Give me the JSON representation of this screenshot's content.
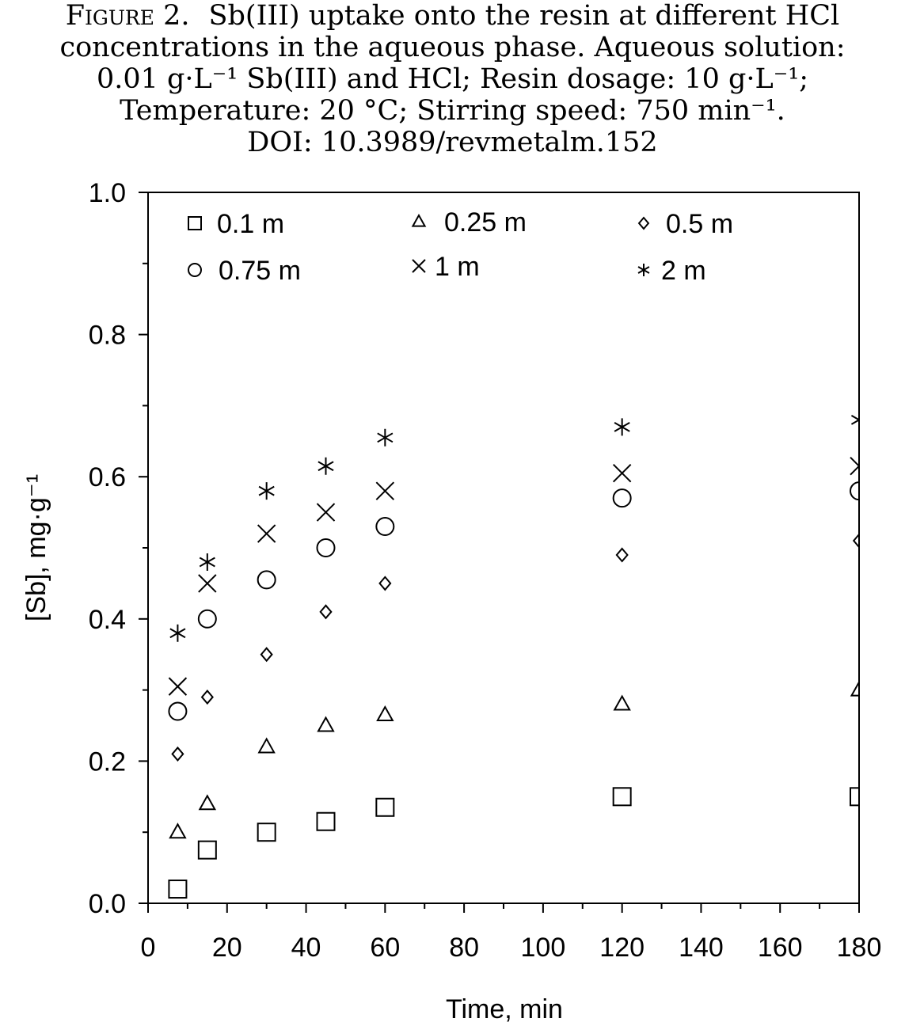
{
  "caption": {
    "label": "Figure 2.",
    "line1": "Sb(III) uptake onto the resin at different HCl",
    "line2": "concentrations in the aqueous phase. Aqueous solution:",
    "line3": "0.01 g·L⁻¹ Sb(III) and HCl; Resin dosage: 10 g·L⁻¹;",
    "line4": "Temperature: 20 °C; Stirring speed: 750 min⁻¹.",
    "line5": "DOI: 10.3989/revmetalm.152"
  },
  "chart_data": {
    "type": "scatter",
    "xlabel": "Time, min",
    "ylabel": "[Sb], mg·g⁻¹",
    "xlim": [
      0,
      180
    ],
    "ylim": [
      0,
      1.0
    ],
    "x_ticks": [
      "0",
      "20",
      "40",
      "60",
      "80",
      "100",
      "120",
      "140",
      "160",
      "180"
    ],
    "y_ticks": [
      "0.0",
      "0.2",
      "0.4",
      "0.6",
      "0.8",
      "1.0"
    ],
    "grid": false,
    "legend_position": "top, inside plot, three columns",
    "x": [
      7.5,
      15,
      30,
      45,
      60,
      120,
      180
    ],
    "series": [
      {
        "name": "0.1 m",
        "marker": "square",
        "values": [
          0.02,
          0.075,
          0.1,
          0.115,
          0.135,
          0.15,
          0.15
        ]
      },
      {
        "name": "0.25 m",
        "marker": "triangle",
        "values": [
          0.1,
          0.14,
          0.22,
          0.25,
          0.265,
          0.28,
          0.3
        ]
      },
      {
        "name": "0.5 m",
        "marker": "diamond",
        "values": [
          0.21,
          0.29,
          0.35,
          0.41,
          0.45,
          0.49,
          0.51
        ]
      },
      {
        "name": "0.75 m",
        "marker": "circle",
        "values": [
          0.27,
          0.4,
          0.455,
          0.5,
          0.53,
          0.57,
          0.58
        ]
      },
      {
        "name": "1 m",
        "marker": "cross",
        "values": [
          0.305,
          0.45,
          0.52,
          0.55,
          0.58,
          0.605,
          0.615
        ]
      },
      {
        "name": "2 m",
        "marker": "asterisk",
        "values": [
          0.38,
          0.48,
          0.58,
          0.615,
          0.655,
          0.67,
          0.68
        ]
      }
    ]
  }
}
